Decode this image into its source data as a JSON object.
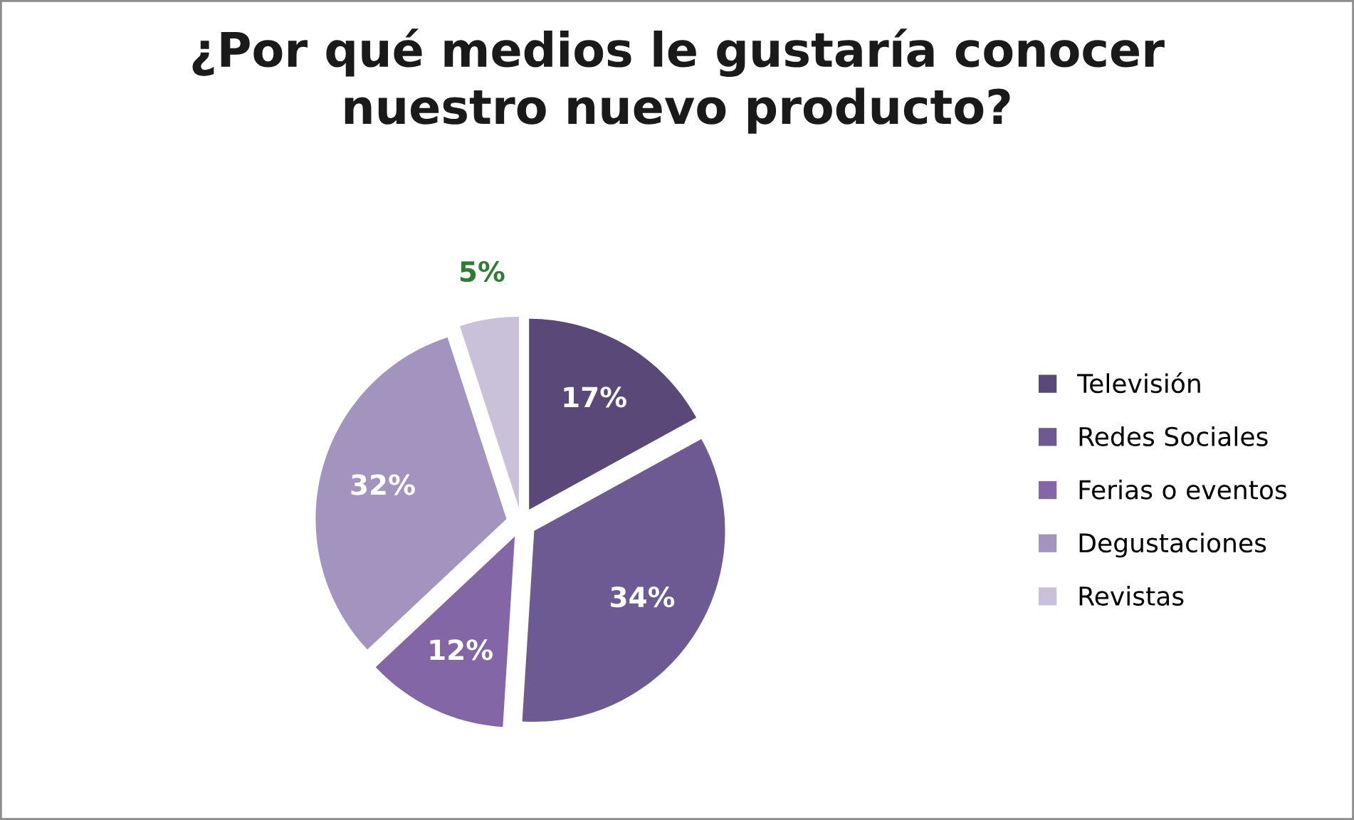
{
  "chart_data": {
    "type": "pie",
    "title": "¿Por qué medios le gustaría conocer\nnuestro nuevo producto?",
    "categories": [
      "Televisión",
      "Redes Sociales",
      "Ferias o eventos",
      "Degustaciones",
      "Revistas"
    ],
    "values": [
      17,
      34,
      12,
      32,
      5
    ],
    "colors": [
      "#5a4878",
      "#6e5a93",
      "#8266a6",
      "#a394bf",
      "#c9c1da"
    ],
    "value_labels": [
      "17%",
      "34%",
      "12%",
      "32%",
      "5%"
    ],
    "legend": "right"
  }
}
